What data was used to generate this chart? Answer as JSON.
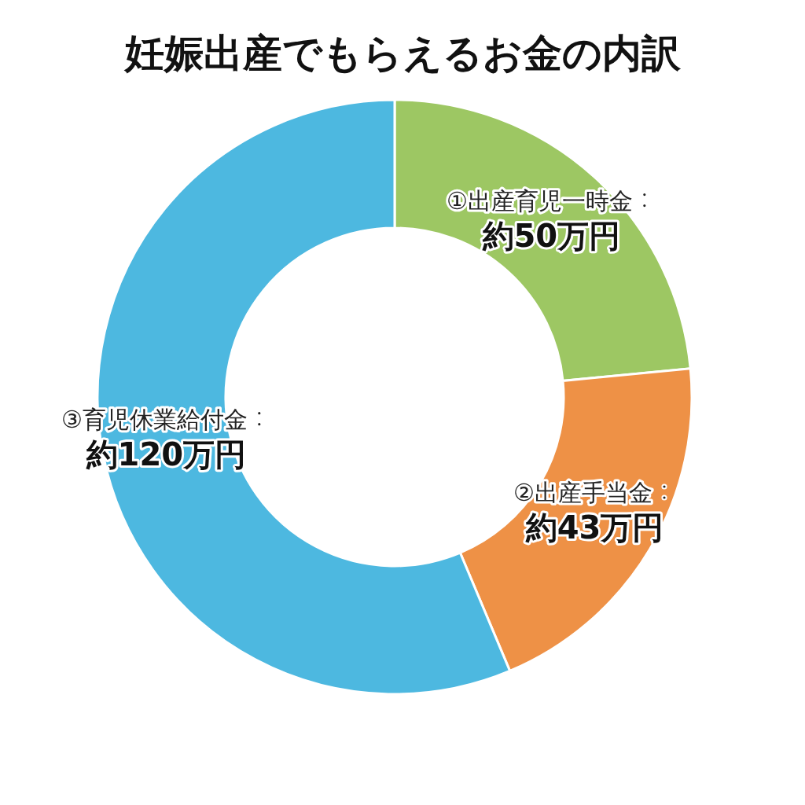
{
  "chart_data": {
    "type": "donut",
    "title": "妊娠出産でもらえるお金の内訳",
    "categories": [
      "①出産育児一時金",
      "②出産手当金",
      "③育児休業給付金"
    ],
    "values": [
      50,
      43,
      120
    ],
    "value_labels": [
      "約50万円",
      "約43万円",
      "約120万円"
    ],
    "colors": [
      "#9dc763",
      "#ee9146",
      "#4db8e0"
    ]
  }
}
